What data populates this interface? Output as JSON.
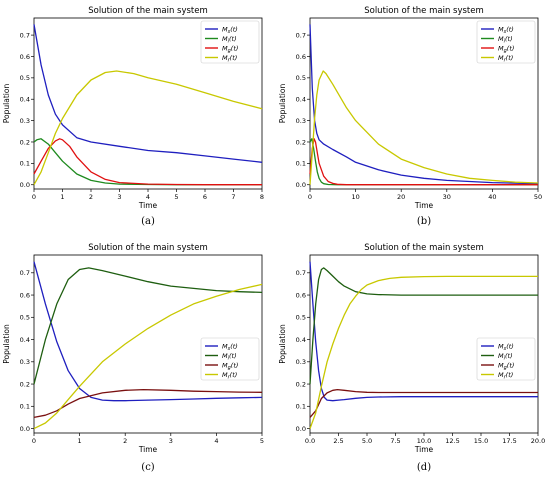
{
  "chart_data": [
    {
      "panel": "a",
      "type": "line",
      "title": "Solution of the main system",
      "xlabel": "Time",
      "ylabel": "Population",
      "caption": "(a)",
      "xlim": [
        0,
        8
      ],
      "ylim": [
        -0.02,
        0.78
      ],
      "xticks": [
        "0",
        "1",
        "2",
        "3",
        "4",
        "5",
        "6",
        "7",
        "8"
      ],
      "yticks": [
        "0.0",
        "0.1",
        "0.2",
        "0.3",
        "0.4",
        "0.5",
        "0.6",
        "0.7"
      ],
      "legend_position": "top-right",
      "series": [
        {
          "name": "M_s(t)",
          "color": "#1f1fbf",
          "x": [
            0,
            0.25,
            0.5,
            0.75,
            1,
            1.5,
            2,
            3,
            4,
            5,
            6,
            7,
            8
          ],
          "y": [
            0.75,
            0.56,
            0.42,
            0.33,
            0.28,
            0.22,
            0.2,
            0.18,
            0.16,
            0.15,
            0.135,
            0.12,
            0.105
          ]
        },
        {
          "name": "M_i(t)",
          "color": "#1e8a1e",
          "x": [
            0,
            0.1,
            0.25,
            0.5,
            0.75,
            1,
            1.5,
            2,
            2.5,
            3,
            4,
            5,
            6,
            7,
            8
          ],
          "y": [
            0.2,
            0.21,
            0.215,
            0.19,
            0.15,
            0.11,
            0.05,
            0.02,
            0.008,
            0.003,
            0.001,
            0,
            0,
            0,
            0
          ]
        },
        {
          "name": "M_g(t)",
          "color": "#e01010",
          "x": [
            0,
            0.25,
            0.5,
            0.75,
            0.9,
            1,
            1.25,
            1.5,
            2,
            2.5,
            3,
            4,
            5,
            6,
            7,
            8
          ],
          "y": [
            0.05,
            0.11,
            0.17,
            0.205,
            0.215,
            0.21,
            0.18,
            0.13,
            0.06,
            0.025,
            0.01,
            0.003,
            0.001,
            0,
            0,
            0
          ]
        },
        {
          "name": "M_r(t)",
          "color": "#c8c800",
          "x": [
            0,
            0.25,
            0.5,
            0.75,
            1,
            1.5,
            2,
            2.5,
            2.9,
            3.5,
            4,
            5,
            6,
            7,
            8
          ],
          "y": [
            0.0,
            0.06,
            0.15,
            0.24,
            0.31,
            0.42,
            0.49,
            0.525,
            0.532,
            0.52,
            0.5,
            0.47,
            0.43,
            0.39,
            0.355
          ]
        }
      ]
    },
    {
      "panel": "b",
      "type": "line",
      "title": "Solution of the main system",
      "xlabel": "Time",
      "ylabel": "Population",
      "caption": "(b)",
      "xlim": [
        0,
        50
      ],
      "ylim": [
        -0.02,
        0.78
      ],
      "xticks": [
        "0",
        "10",
        "20",
        "30",
        "40",
        "50"
      ],
      "yticks": [
        "0.0",
        "0.1",
        "0.2",
        "0.3",
        "0.4",
        "0.5",
        "0.6",
        "0.7"
      ],
      "legend_position": "top-right",
      "series": [
        {
          "name": "M_s(t)",
          "color": "#1f1fbf",
          "x": [
            0,
            0.5,
            1,
            1.5,
            2,
            3,
            5,
            8,
            10,
            15,
            20,
            25,
            30,
            40,
            50
          ],
          "y": [
            0.75,
            0.45,
            0.3,
            0.24,
            0.21,
            0.19,
            0.165,
            0.13,
            0.105,
            0.07,
            0.045,
            0.03,
            0.02,
            0.01,
            0.005
          ]
        },
        {
          "name": "M_i(t)",
          "color": "#1e8a1e",
          "x": [
            0,
            0.4,
            0.8,
            1.2,
            1.6,
            2,
            2.5,
            3,
            4,
            6,
            50
          ],
          "y": [
            0.2,
            0.215,
            0.17,
            0.11,
            0.06,
            0.03,
            0.012,
            0.005,
            0.001,
            0,
            0
          ]
        },
        {
          "name": "M_g(t)",
          "color": "#e01010",
          "x": [
            0,
            0.5,
            0.9,
            1.2,
            1.6,
            2,
            3,
            4,
            5,
            6,
            8,
            50
          ],
          "y": [
            0.05,
            0.17,
            0.215,
            0.2,
            0.15,
            0.1,
            0.04,
            0.015,
            0.006,
            0.002,
            0,
            0
          ]
        },
        {
          "name": "M_r(t)",
          "color": "#c8c800",
          "x": [
            0,
            0.5,
            1,
            1.5,
            2,
            2.9,
            3.5,
            5,
            8,
            10,
            15,
            20,
            25,
            30,
            35,
            40,
            45,
            50
          ],
          "y": [
            0.0,
            0.15,
            0.31,
            0.42,
            0.49,
            0.532,
            0.52,
            0.47,
            0.36,
            0.3,
            0.19,
            0.12,
            0.08,
            0.05,
            0.03,
            0.02,
            0.012,
            0.008
          ]
        }
      ]
    },
    {
      "panel": "c",
      "type": "line",
      "title": "Solution of the main system",
      "xlabel": "Time",
      "ylabel": "Population",
      "caption": "(c)",
      "xlim": [
        0,
        5
      ],
      "ylim": [
        -0.02,
        0.78
      ],
      "xticks": [
        "0",
        "1",
        "2",
        "3",
        "4",
        "5"
      ],
      "yticks": [
        "0.0",
        "0.1",
        "0.2",
        "0.3",
        "0.4",
        "0.5",
        "0.6",
        "0.7"
      ],
      "legend_position": "center-right",
      "series": [
        {
          "name": "M_s(t)",
          "color": "#1f1fbf",
          "x": [
            0,
            0.25,
            0.5,
            0.75,
            1,
            1.25,
            1.5,
            1.75,
            2,
            2.5,
            3,
            3.5,
            4,
            4.5,
            5
          ],
          "y": [
            0.75,
            0.56,
            0.39,
            0.26,
            0.18,
            0.14,
            0.128,
            0.125,
            0.125,
            0.128,
            0.13,
            0.133,
            0.136,
            0.138,
            0.14
          ]
        },
        {
          "name": "M_i(t)",
          "color": "#1e5e10",
          "x": [
            0,
            0.25,
            0.5,
            0.75,
            1,
            1.2,
            1.5,
            2,
            2.5,
            3,
            3.5,
            4,
            4.5,
            5
          ],
          "y": [
            0.2,
            0.4,
            0.56,
            0.67,
            0.715,
            0.722,
            0.71,
            0.685,
            0.66,
            0.64,
            0.63,
            0.62,
            0.615,
            0.612
          ]
        },
        {
          "name": "M_g(t)",
          "color": "#7a1010",
          "x": [
            0,
            0.25,
            0.5,
            0.75,
            1,
            1.5,
            2,
            2.4,
            3,
            3.5,
            4,
            4.5,
            5
          ],
          "y": [
            0.05,
            0.06,
            0.08,
            0.11,
            0.135,
            0.16,
            0.172,
            0.175,
            0.172,
            0.168,
            0.166,
            0.164,
            0.163
          ]
        },
        {
          "name": "M_r(t)",
          "color": "#c8c800",
          "x": [
            0,
            0.25,
            0.5,
            0.75,
            1,
            1.5,
            2,
            2.5,
            3,
            3.5,
            4,
            4.5,
            5
          ],
          "y": [
            0.0,
            0.025,
            0.07,
            0.13,
            0.19,
            0.3,
            0.38,
            0.45,
            0.51,
            0.56,
            0.595,
            0.625,
            0.648
          ]
        }
      ]
    },
    {
      "panel": "d",
      "type": "line",
      "title": "Solution of the main system",
      "xlabel": "Time",
      "ylabel": "Population",
      "caption": "(d)",
      "xlim": [
        0,
        20
      ],
      "ylim": [
        -0.02,
        0.78
      ],
      "xticks": [
        "0.0",
        "2.5",
        "5.0",
        "7.5",
        "10.0",
        "12.5",
        "15.0",
        "17.5",
        "20.0"
      ],
      "yticks": [
        "0.0",
        "0.1",
        "0.2",
        "0.3",
        "0.4",
        "0.5",
        "0.6",
        "0.7"
      ],
      "legend_position": "center-right",
      "series": [
        {
          "name": "M_s(t)",
          "color": "#1f1fbf",
          "x": [
            0,
            0.25,
            0.5,
            0.75,
            1,
            1.25,
            1.5,
            2,
            2.5,
            3,
            4,
            5,
            6,
            8,
            10,
            15,
            20
          ],
          "y": [
            0.75,
            0.56,
            0.39,
            0.26,
            0.18,
            0.14,
            0.128,
            0.125,
            0.128,
            0.13,
            0.136,
            0.14,
            0.142,
            0.143,
            0.143,
            0.143,
            0.143
          ]
        },
        {
          "name": "M_i(t)",
          "color": "#1e5e10",
          "x": [
            0,
            0.25,
            0.5,
            0.75,
            1,
            1.2,
            1.5,
            2,
            2.5,
            3,
            4,
            5,
            6,
            8,
            10,
            15,
            20
          ],
          "y": [
            0.2,
            0.4,
            0.56,
            0.67,
            0.715,
            0.722,
            0.71,
            0.685,
            0.66,
            0.64,
            0.615,
            0.605,
            0.602,
            0.6,
            0.6,
            0.6,
            0.6
          ]
        },
        {
          "name": "M_g(t)",
          "color": "#7a1010",
          "x": [
            0,
            0.5,
            1,
            1.5,
            2,
            2.4,
            3,
            4,
            5,
            6,
            8,
            10,
            15,
            20
          ],
          "y": [
            0.05,
            0.08,
            0.135,
            0.16,
            0.172,
            0.175,
            0.172,
            0.166,
            0.163,
            0.162,
            0.162,
            0.162,
            0.162,
            0.162
          ]
        },
        {
          "name": "M_r(t)",
          "color": "#c8c800",
          "x": [
            0,
            0.5,
            1,
            1.5,
            2,
            2.5,
            3,
            3.5,
            4,
            4.5,
            5,
            6,
            7,
            8,
            10,
            12,
            15,
            20
          ],
          "y": [
            0.0,
            0.07,
            0.19,
            0.3,
            0.38,
            0.45,
            0.51,
            0.56,
            0.595,
            0.625,
            0.645,
            0.665,
            0.675,
            0.68,
            0.683,
            0.684,
            0.684,
            0.684
          ]
        }
      ]
    }
  ]
}
